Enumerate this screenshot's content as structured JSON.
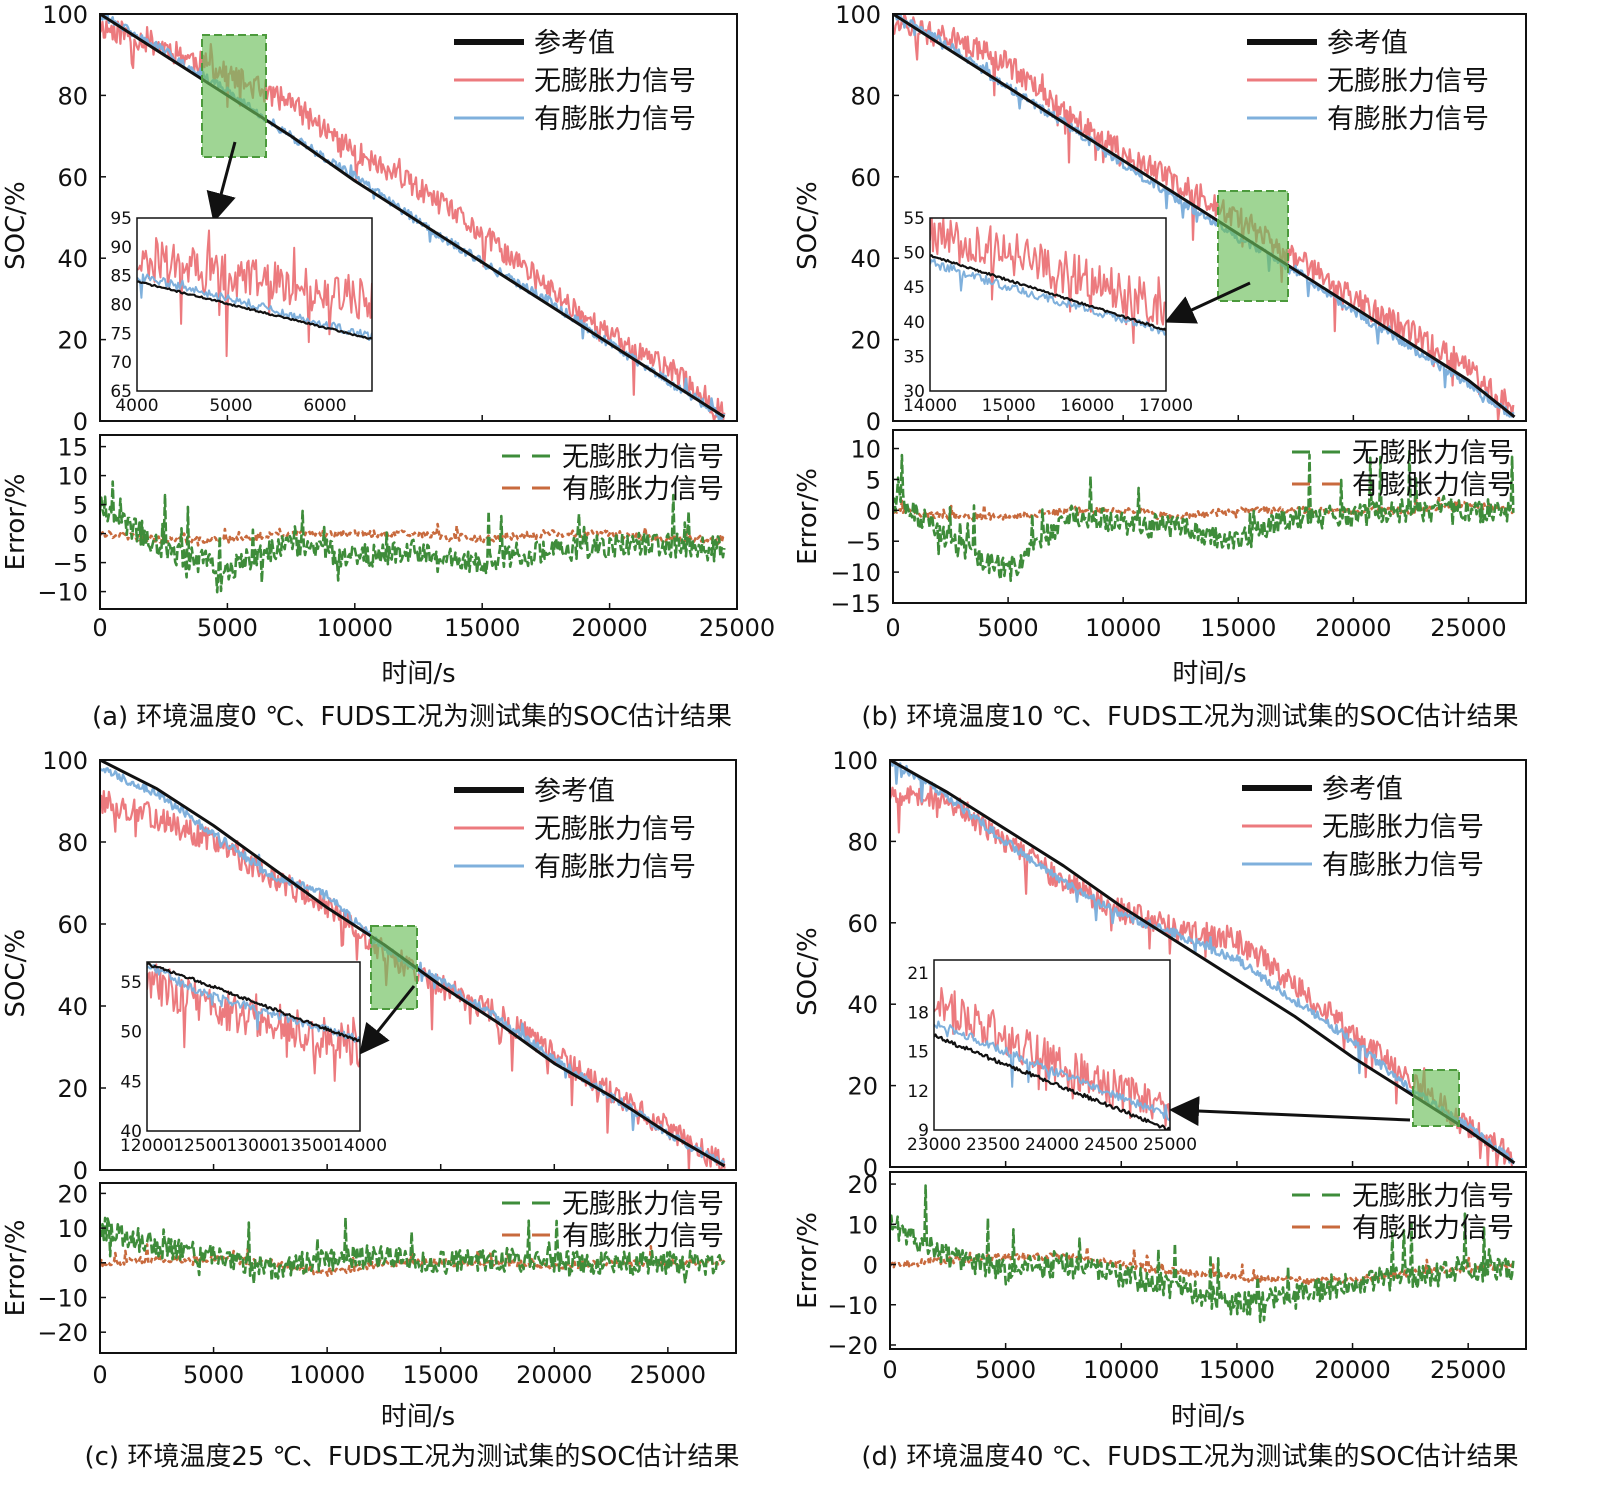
{
  "panels": [
    {
      "caption": "(a) 环境温度0 ℃、FUDS工况为测试集的SOC估计结果",
      "xlabel": "时间/s",
      "soc": {
        "ylabel": "SOC/%",
        "xlim": [
          0,
          25000
        ],
        "ylim": [
          0,
          100
        ],
        "xticks": [
          0,
          5000,
          10000,
          15000,
          20000,
          25000
        ],
        "yticks": [
          0,
          20,
          40,
          60,
          80,
          100
        ],
        "legend": [
          "参考值",
          "无膨胀力信号",
          "有膨胀力信号"
        ]
      },
      "inset": {
        "xlim": [
          4000,
          6500
        ],
        "ylim": [
          65,
          95
        ],
        "xticks": [
          4000,
          5000,
          6000
        ],
        "yticks": [
          65,
          70,
          75,
          80,
          85,
          90,
          95
        ],
        "highlight": [
          4000,
          6500,
          64,
          95
        ]
      },
      "error": {
        "ylabel": "Error/%",
        "ylim": [
          -13,
          17
        ],
        "yticks": [
          -10,
          -5,
          0,
          5,
          10,
          15
        ],
        "legend": [
          "无膨胀力信号",
          "有膨胀力信号"
        ]
      }
    },
    {
      "caption": "(b) 环境温度10 ℃、FUDS工况为测试集的SOC估计结果",
      "xlabel": "时间/s",
      "soc": {
        "ylabel": "SOC/%",
        "xlim": [
          0,
          27500
        ],
        "ylim": [
          0,
          100
        ],
        "xticks": [
          0,
          5000,
          10000,
          15000,
          20000,
          25000
        ],
        "yticks": [
          0,
          20,
          40,
          60,
          80,
          100
        ],
        "legend": [
          "参考值",
          "无膨胀力信号",
          "有膨胀力信号"
        ]
      },
      "inset": {
        "xlim": [
          14000,
          17000
        ],
        "ylim": [
          30,
          55
        ],
        "xticks": [
          14000,
          15000,
          16000,
          17000
        ],
        "yticks": [
          30,
          35,
          40,
          45,
          50,
          55
        ],
        "highlight": [
          14000,
          17100,
          30,
          57
        ]
      },
      "error": {
        "ylabel": "Error/%",
        "ylim": [
          -15,
          13
        ],
        "yticks": [
          -15,
          -10,
          -5,
          0,
          5,
          10
        ],
        "legend": [
          "无膨胀力信号",
          "有膨胀力信号"
        ]
      }
    },
    {
      "caption": "(c) 环境温度25 ℃、FUDS工况为测试集的SOC估计结果",
      "xlabel": "时间/s",
      "soc": {
        "ylabel": "SOC/%",
        "xlim": [
          0,
          28000
        ],
        "ylim": [
          0,
          100
        ],
        "xticks": [
          0,
          5000,
          10000,
          15000,
          20000,
          25000
        ],
        "yticks": [
          0,
          20,
          40,
          60,
          80,
          100
        ],
        "legend": [
          "参考值",
          "无膨胀力信号",
          "有膨胀力信号"
        ]
      },
      "inset": {
        "xlim": [
          12000,
          14000
        ],
        "ylim": [
          40,
          57
        ],
        "xticks": [
          12000,
          12500,
          13000,
          13500,
          14000
        ],
        "yticks": [
          40,
          45,
          50,
          55
        ],
        "highlight": [
          12000,
          14000,
          39,
          59
        ]
      },
      "error": {
        "ylabel": "Error/%",
        "ylim": [
          -26,
          23
        ],
        "yticks": [
          -20,
          -10,
          0,
          10,
          20
        ],
        "legend": [
          "无膨胀力信号",
          "有膨胀力信号"
        ]
      }
    },
    {
      "caption": "(d) 环境温度40 ℃、FUDS工况为测试集的SOC估计结果",
      "xlabel": "时间/s",
      "soc": {
        "ylabel": "SOC/%",
        "xlim": [
          0,
          27500
        ],
        "ylim": [
          0,
          100
        ],
        "xticks": [
          0,
          5000,
          10000,
          15000,
          20000,
          25000
        ],
        "yticks": [
          0,
          20,
          40,
          60,
          80,
          100
        ],
        "legend": [
          "参考值",
          "无膨胀力信号",
          "有膨胀力信号"
        ]
      },
      "inset": {
        "xlim": [
          23000,
          25000
        ],
        "ylim": [
          9,
          22
        ],
        "xticks": [
          23000,
          23500,
          24000,
          24500,
          25000
        ],
        "yticks": [
          9,
          12,
          15,
          18,
          21
        ],
        "highlight": [
          23000,
          25000,
          10,
          24
        ]
      },
      "error": {
        "ylabel": "Error/%",
        "ylim": [
          -21,
          23
        ],
        "yticks": [
          -20,
          -10,
          0,
          10,
          20
        ],
        "legend": [
          "无膨胀力信号",
          "有膨胀力信号"
        ]
      }
    }
  ],
  "colors": {
    "reference": "#111111",
    "no_expansion": "#ec7a7e",
    "with_expansion": "#7fb0dc",
    "error_no_expansion": "#3e8c3a",
    "error_with_expansion": "#c86a3d",
    "zoom_box": "#6cbf5a"
  },
  "chart_data": [
    {
      "type": "line",
      "title": "",
      "xlabel": "时间/s",
      "ylabel": "SOC/%",
      "xlim": [
        0,
        25000
      ],
      "ylim": [
        0,
        100
      ],
      "x": [
        0,
        2500,
        5000,
        7500,
        10000,
        12500,
        15000,
        17500,
        20000,
        22500,
        24500
      ],
      "series": [
        {
          "name": "参考值",
          "values": [
            100,
            90,
            80,
            70,
            59,
            49,
            39,
            29,
            19,
            9,
            1
          ]
        },
        {
          "name": "无膨胀力信号",
          "values": [
            97,
            92,
            85,
            78,
            66,
            57,
            46,
            33,
            21,
            12,
            2
          ]
        },
        {
          "name": "有膨胀力信号",
          "values": [
            100,
            91,
            81,
            70,
            60,
            49,
            39,
            30,
            19,
            9,
            1
          ]
        }
      ],
      "error": {
        "xlabel": "时间/s",
        "ylabel": "Error/%",
        "x": [
          0,
          2500,
          5000,
          7500,
          10000,
          12500,
          15000,
          17500,
          20000,
          22500,
          24500
        ],
        "series": [
          {
            "name": "无膨胀力信号",
            "values": [
              5,
              -3,
              -6,
              -2,
              -4,
              -3,
              -5,
              -3,
              -2,
              -2,
              -2
            ]
          },
          {
            "name": "有膨胀力信号",
            "values": [
              0,
              -1,
              -1,
              0,
              0,
              0,
              -1,
              0,
              0,
              -1,
              -1
            ]
          }
        ]
      }
    },
    {
      "type": "line",
      "title": "",
      "xlabel": "时间/s",
      "ylabel": "SOC/%",
      "xlim": [
        0,
        27500
      ],
      "ylim": [
        0,
        100
      ],
      "x": [
        0,
        2500,
        5000,
        7500,
        10000,
        12500,
        15000,
        17500,
        20000,
        22500,
        25000,
        27000
      ],
      "series": [
        {
          "name": "参考值",
          "values": [
            100,
            91,
            82,
            73,
            64,
            55,
            46,
            37,
            28,
            19,
            10,
            1
          ]
        },
        {
          "name": "无膨胀力信号",
          "values": [
            98,
            94,
            88,
            75,
            66,
            58,
            50,
            40,
            30,
            22,
            13,
            2
          ]
        },
        {
          "name": "有膨胀力信号",
          "values": [
            100,
            92,
            82,
            73,
            63,
            54,
            45,
            37,
            27,
            18,
            9,
            1
          ]
        }
      ],
      "error": {
        "xlabel": "时间/s",
        "ylabel": "Error/%",
        "x": [
          0,
          2500,
          5000,
          7500,
          10000,
          12500,
          15000,
          17500,
          20000,
          22500,
          25000,
          27000
        ],
        "series": [
          {
            "name": "无膨胀力信号",
            "values": [
              2,
              -5,
              -10,
              -1,
              -2,
              -3,
              -5,
              -1,
              -1,
              0,
              0,
              0
            ]
          },
          {
            "name": "有膨胀力信号",
            "values": [
              0,
              -1,
              -1,
              0,
              0,
              -1,
              0,
              0,
              0,
              0,
              1,
              0
            ]
          }
        ]
      }
    },
    {
      "type": "line",
      "title": "",
      "xlabel": "时间/s",
      "ylabel": "SOC/%",
      "xlim": [
        0,
        28000
      ],
      "ylim": [
        0,
        100
      ],
      "x": [
        0,
        2500,
        5000,
        7500,
        10000,
        12500,
        15000,
        17500,
        20000,
        22500,
        25000,
        27500
      ],
      "series": [
        {
          "name": "参考值",
          "values": [
            100,
            93,
            84,
            74,
            64,
            55,
            45,
            36,
            26,
            18,
            9,
            1
          ]
        },
        {
          "name": "无膨胀力信号",
          "values": [
            90,
            86,
            80,
            72,
            64,
            53,
            45,
            38,
            28,
            19,
            10,
            1
          ]
        },
        {
          "name": "有膨胀力信号",
          "values": [
            98,
            92,
            82,
            72,
            67,
            54,
            46,
            37,
            27,
            18,
            9,
            1
          ]
        }
      ],
      "error": {
        "xlabel": "时间/s",
        "ylabel": "Error/%",
        "x": [
          0,
          2500,
          5000,
          7500,
          10000,
          12500,
          15000,
          17500,
          20000,
          22500,
          25000,
          27500
        ],
        "series": [
          {
            "name": "无膨胀力信号",
            "values": [
              10,
              5,
              2,
              -2,
              1,
              2,
              0,
              1,
              0,
              0,
              0,
              0
            ]
          },
          {
            "name": "有膨胀力信号",
            "values": [
              0,
              1,
              1,
              0,
              -3,
              0,
              0,
              0,
              -1,
              0,
              0,
              0
            ]
          }
        ]
      }
    },
    {
      "type": "line",
      "title": "",
      "xlabel": "时间/s",
      "ylabel": "SOC/%",
      "xlim": [
        0,
        27500
      ],
      "ylim": [
        0,
        100
      ],
      "x": [
        0,
        2500,
        5000,
        7500,
        10000,
        12500,
        15000,
        17500,
        20000,
        22500,
        25000,
        27000
      ],
      "series": [
        {
          "name": "参考值",
          "values": [
            100,
            92,
            83,
            74,
            64,
            55,
            46,
            37,
            27,
            18,
            9,
            1
          ]
        },
        {
          "name": "无膨胀力信号",
          "values": [
            92,
            90,
            80,
            70,
            63,
            58,
            56,
            45,
            33,
            21,
            10,
            2
          ]
        },
        {
          "name": "有膨胀力信号",
          "values": [
            100,
            91,
            80,
            70,
            62,
            57,
            51,
            41,
            31,
            19,
            10,
            1
          ]
        }
      ],
      "error": {
        "xlabel": "时间/s",
        "ylabel": "Error/%",
        "x": [
          0,
          2500,
          5000,
          7500,
          10000,
          12500,
          15000,
          17500,
          20000,
          22500,
          25000,
          27000
        ],
        "series": [
          {
            "name": "无膨胀力信号",
            "values": [
              10,
              2,
              -2,
              0,
              -3,
              -6,
              -10,
              -8,
              -4,
              -3,
              -2,
              -1
            ]
          },
          {
            "name": "有膨胀力信号",
            "values": [
              0,
              1,
              2,
              2,
              0,
              -2,
              -3,
              -4,
              -4,
              -2,
              -1,
              0
            ]
          }
        ]
      }
    }
  ]
}
